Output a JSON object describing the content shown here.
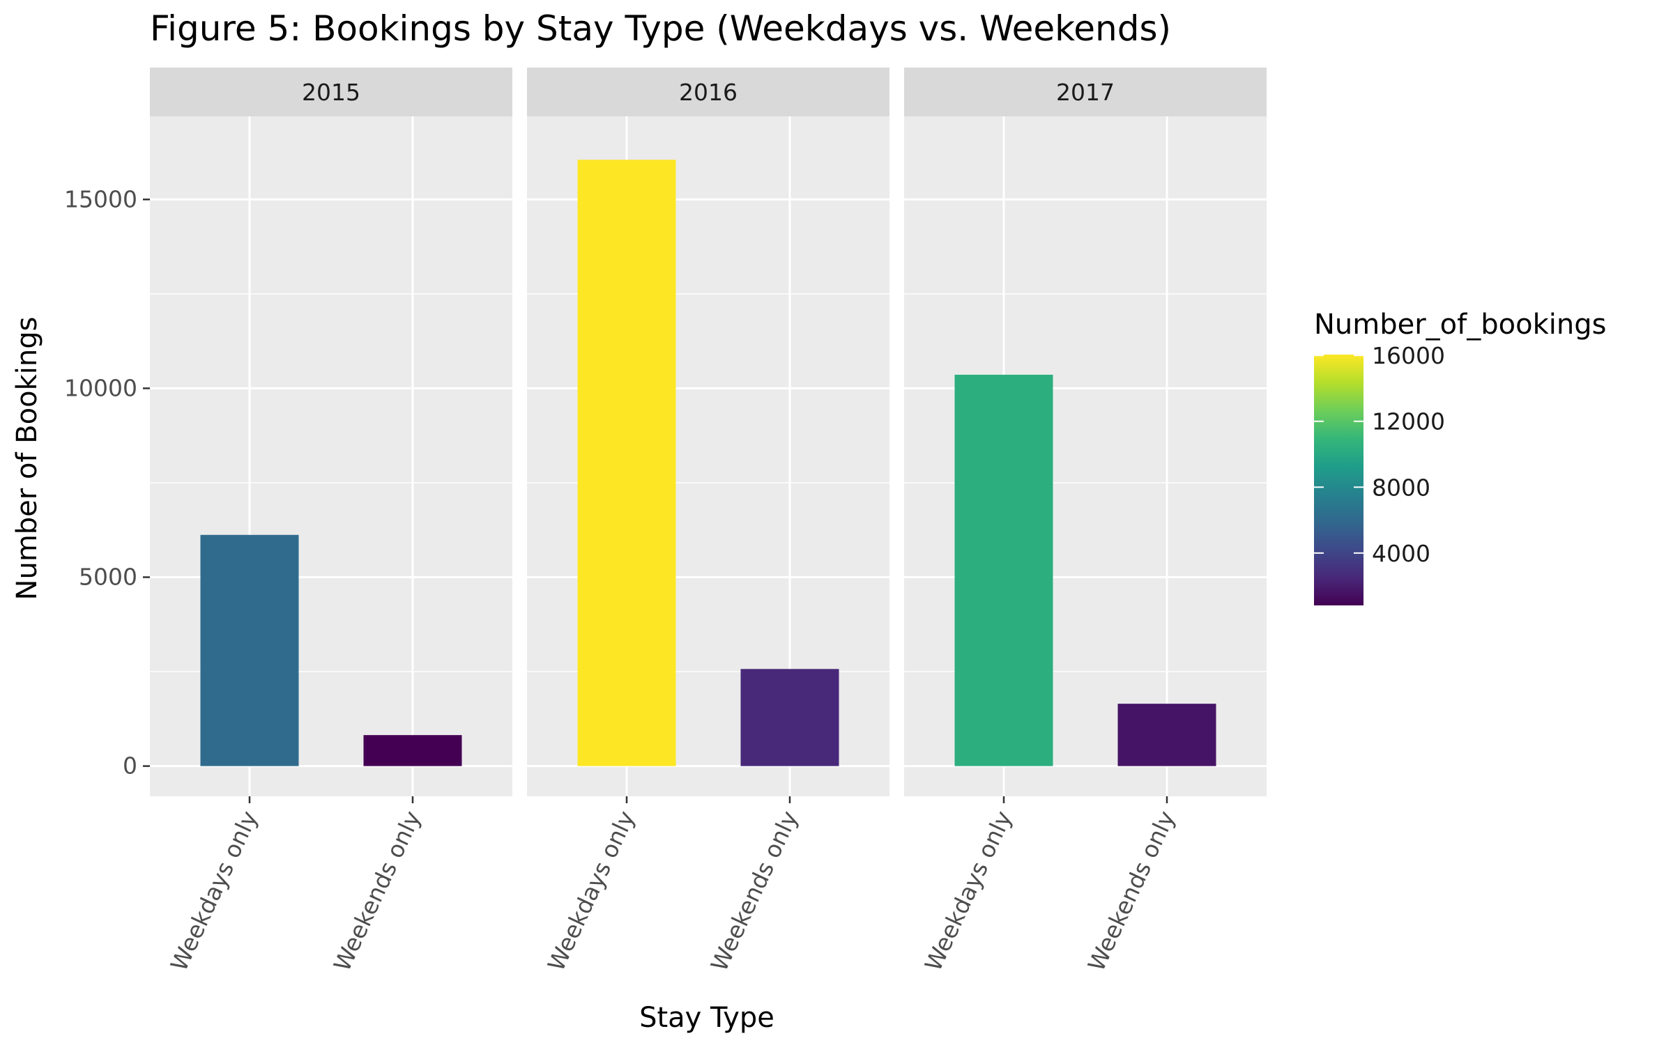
{
  "chart_data": {
    "type": "bar",
    "title": "Figure 5: Bookings by Stay Type (Weekdays vs. Weekends)",
    "xlabel": "Stay Type",
    "ylabel": "Number of Bookings",
    "ylim": [
      -800,
      17200
    ],
    "yticks": [
      0,
      5000,
      10000,
      15000
    ],
    "yticks_labels": [
      "0",
      "5000",
      "10000",
      "15000"
    ],
    "grid": true,
    "categories": [
      "Weekdays only",
      "Weekends only"
    ],
    "facets": [
      {
        "label": "2015",
        "values": [
          6120,
          820
        ]
      },
      {
        "label": "2016",
        "values": [
          16050,
          2570
        ]
      },
      {
        "label": "2017",
        "values": [
          10360,
          1650
        ]
      }
    ],
    "legend": {
      "title": "Number_of_bookings",
      "position": "right",
      "ticks": [
        4000,
        8000,
        12000,
        16000
      ],
      "tick_labels": [
        "4000",
        "8000",
        "12000",
        "16000"
      ],
      "range": [
        820,
        16050
      ],
      "colormap": [
        "#440154",
        "#482878",
        "#3e4989",
        "#31688e",
        "#26828e",
        "#1f9e89",
        "#35b779",
        "#6ece58",
        "#b5de2b",
        "#fde725"
      ]
    }
  }
}
